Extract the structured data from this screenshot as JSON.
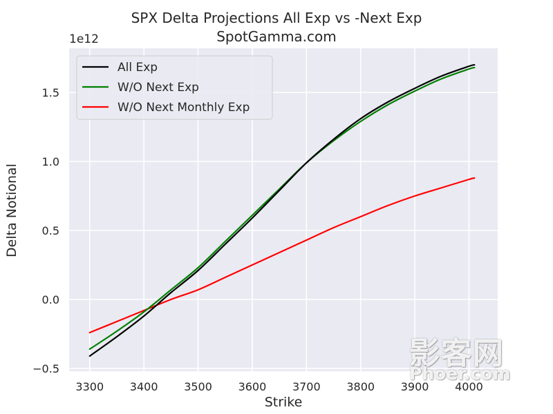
{
  "chart_data": {
    "type": "line",
    "title": "SPX Delta Projections All Exp vs -Next Exp",
    "subtitle": "SpotGamma.com",
    "xlabel": "Strike",
    "ylabel": "Delta Notional",
    "y_offset_text": "1e12",
    "xlim": [
      3262,
      4053
    ],
    "ylim": [
      -0.52,
      1.82
    ],
    "x_ticks": [
      3300,
      3400,
      3500,
      3600,
      3700,
      3800,
      3900,
      4000
    ],
    "y_ticks": [
      -0.5,
      0.0,
      0.5,
      1.0,
      1.5
    ],
    "x_tick_labels": [
      "3300",
      "3400",
      "3500",
      "3600",
      "3700",
      "3800",
      "3900",
      "4000"
    ],
    "y_tick_labels": [
      "−0.5",
      "0.0",
      "0.5",
      "1.0",
      "1.5"
    ],
    "grid": true,
    "background": "#eaeaf2",
    "legend_position": "top-left",
    "x": [
      3300,
      3350,
      3400,
      3450,
      3500,
      3550,
      3600,
      3650,
      3700,
      3750,
      3800,
      3850,
      3900,
      3950,
      4000,
      4010
    ],
    "series": [
      {
        "name": "All Exp",
        "color": "#000000",
        "values": [
          -0.41,
          -0.27,
          -0.12,
          0.05,
          0.21,
          0.4,
          0.59,
          0.79,
          0.99,
          1.16,
          1.31,
          1.43,
          1.53,
          1.62,
          1.69,
          1.7
        ]
      },
      {
        "name": "W/O Next Exp",
        "color": "#008000",
        "values": [
          -0.36,
          -0.23,
          -0.09,
          0.07,
          0.23,
          0.42,
          0.61,
          0.8,
          0.99,
          1.15,
          1.29,
          1.41,
          1.51,
          1.6,
          1.67,
          1.68
        ]
      },
      {
        "name": "W/O Next Monthly Exp",
        "color": "#ff0000",
        "values": [
          -0.24,
          -0.16,
          -0.08,
          0.0,
          0.07,
          0.16,
          0.25,
          0.34,
          0.43,
          0.52,
          0.6,
          0.68,
          0.75,
          0.81,
          0.87,
          0.88
        ]
      }
    ]
  },
  "watermark": {
    "text_cn": "影客网",
    "text_en": "Phoer.com"
  }
}
